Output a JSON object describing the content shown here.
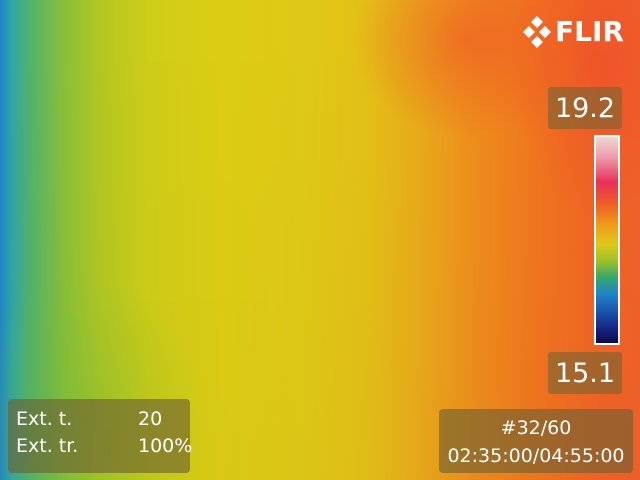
{
  "logo": {
    "text": "FLIR",
    "icon": "flir-diamond-icon"
  },
  "scale": {
    "max": "19.2",
    "min": "15.1",
    "palette": "iron-rainbow"
  },
  "ext": {
    "temp_label": "Ext. t.",
    "temp_value": "20",
    "trans_label": "Ext. tr.",
    "trans_value": "100%"
  },
  "playback": {
    "frame": "#32/60",
    "time": "02:35:00/04:55:00"
  },
  "colors": {
    "overlay_box": "#786432",
    "text": "#ffffff"
  }
}
